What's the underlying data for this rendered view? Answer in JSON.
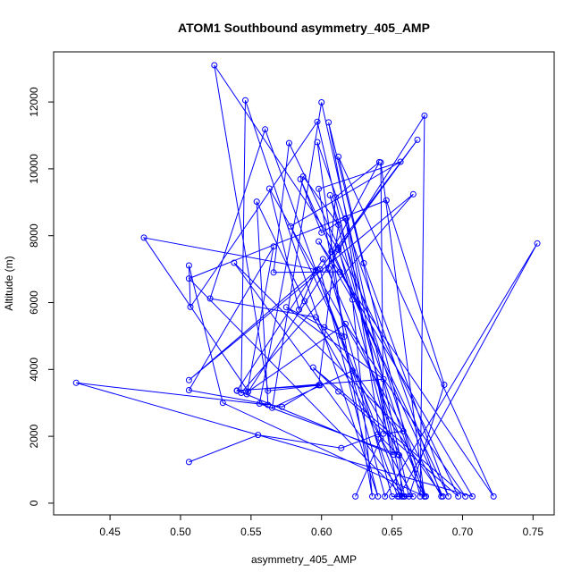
{
  "chart_data": {
    "type": "line",
    "title": "ATOM1 Southbound asymmetry_405_AMP",
    "xlabel": "asymmetry_405_AMP",
    "ylabel": "Altitude (m)",
    "xlim": [
      0.41,
      0.765
    ],
    "ylim": [
      -350,
      13500
    ],
    "x_ticks": [
      "0.45",
      "0.50",
      "0.55",
      "0.60",
      "0.65",
      "0.70",
      "0.75"
    ],
    "y_ticks": [
      "0",
      "2000",
      "4000",
      "6000",
      "8000",
      "10000",
      "12000"
    ],
    "grid": false,
    "legend": "none",
    "series": [
      {
        "color": "#0000ff",
        "marker": "open-circle",
        "points": [
          [
            0.506,
            1230
          ],
          [
            0.555,
            2040
          ],
          [
            0.614,
            1650
          ],
          [
            0.64,
            2060
          ],
          [
            0.655,
            1430
          ],
          [
            0.657,
            200
          ],
          [
            0.65,
            200
          ],
          [
            0.605,
            7020
          ],
          [
            0.61,
            9150
          ],
          [
            0.641,
            10200
          ],
          [
            0.607,
            7520
          ],
          [
            0.69,
            200
          ],
          [
            0.63,
            7180
          ],
          [
            0.612,
            10360
          ],
          [
            0.722,
            200
          ],
          [
            0.598,
            7830
          ],
          [
            0.622,
            6090
          ],
          [
            0.636,
            200
          ],
          [
            0.598,
            9400
          ],
          [
            0.656,
            10210
          ],
          [
            0.578,
            8280
          ],
          [
            0.614,
            5000
          ],
          [
            0.645,
            200
          ],
          [
            0.753,
            7770
          ],
          [
            0.655,
            200
          ],
          [
            0.605,
            11390
          ],
          [
            0.67,
            200
          ],
          [
            0.673,
            11590
          ],
          [
            0.547,
            3260
          ],
          [
            0.566,
            7680
          ],
          [
            0.506,
            3380
          ],
          [
            0.572,
            2880
          ],
          [
            0.598,
            3530
          ],
          [
            0.612,
            8330
          ],
          [
            0.587,
            9770
          ],
          [
            0.556,
            2980
          ],
          [
            0.654,
            1460
          ],
          [
            0.606,
            9210
          ],
          [
            0.674,
            200
          ],
          [
            0.601,
            7300
          ],
          [
            0.54,
            3360
          ],
          [
            0.644,
            3710
          ],
          [
            0.575,
            5860
          ],
          [
            0.602,
            5260
          ],
          [
            0.616,
            4980
          ],
          [
            0.597,
            10800
          ],
          [
            0.685,
            200
          ],
          [
            0.563,
            9410
          ],
          [
            0.584,
            5790
          ],
          [
            0.596,
            6950
          ],
          [
            0.658,
            200
          ],
          [
            0.506,
            6720
          ],
          [
            0.646,
            9060
          ],
          [
            0.687,
            3540
          ],
          [
            0.662,
            200
          ],
          [
            0.6,
            11990
          ],
          [
            0.565,
            2850
          ],
          [
            0.622,
            3960
          ],
          [
            0.673,
            200
          ],
          [
            0.53,
            3000
          ],
          [
            0.506,
            7110
          ],
          [
            0.507,
            5870
          ],
          [
            0.597,
            11410
          ],
          [
            0.659,
            200
          ],
          [
            0.538,
            7190
          ],
          [
            0.658,
            2150
          ],
          [
            0.644,
            2080
          ],
          [
            0.642,
            10190
          ],
          [
            0.673,
            200
          ],
          [
            0.612,
            7580
          ],
          [
            0.524,
            13100
          ],
          [
            0.562,
            3360
          ],
          [
            0.599,
            3530
          ],
          [
            0.54,
            3370
          ],
          [
            0.651,
            1450
          ],
          [
            0.612,
            7640
          ],
          [
            0.668,
            10870
          ],
          [
            0.599,
            6990
          ],
          [
            0.64,
            200
          ],
          [
            0.546,
            12050
          ],
          [
            0.543,
            3300
          ],
          [
            0.665,
            9240
          ],
          [
            0.506,
            3680
          ],
          [
            0.597,
            6980
          ],
          [
            0.474,
            7940
          ],
          [
            0.548,
            3340
          ],
          [
            0.617,
            5360
          ],
          [
            0.702,
            200
          ],
          [
            0.594,
            4060
          ],
          [
            0.612,
            3340
          ],
          [
            0.697,
            200
          ],
          [
            0.577,
            10770
          ],
          [
            0.566,
            6900
          ],
          [
            0.613,
            6920
          ],
          [
            0.707,
            200
          ],
          [
            0.426,
            3600
          ],
          [
            0.562,
            2940
          ],
          [
            0.554,
            9020
          ],
          [
            0.588,
            6040
          ],
          [
            0.665,
            200
          ],
          [
            0.654,
            200
          ],
          [
            0.56,
            11180
          ],
          [
            0.521,
            6120
          ],
          [
            0.596,
            5560
          ],
          [
            0.686,
            200
          ],
          [
            0.585,
            9690
          ],
          [
            0.6,
            8090
          ],
          [
            0.617,
            8520
          ],
          [
            0.642,
            1930
          ],
          [
            0.624,
            200
          ]
        ]
      }
    ]
  }
}
